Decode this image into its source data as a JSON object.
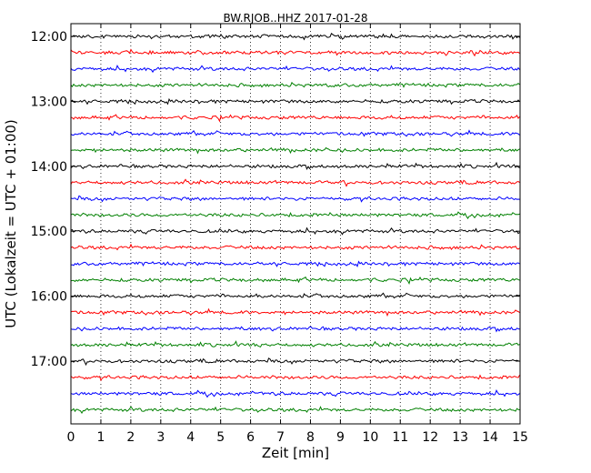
{
  "chart_data": {
    "type": "line",
    "title": "BW.RJOB..HHZ 2017-01-28",
    "xlabel": "Zeit  [min]",
    "ylabel": "UTC (Lokalzeit = UTC + 01:00)",
    "xlim": [
      0,
      15
    ],
    "x_ticks": [
      "0",
      "1",
      "2",
      "3",
      "4",
      "5",
      "6",
      "7",
      "8",
      "9",
      "10",
      "11",
      "12",
      "13",
      "14",
      "15"
    ],
    "y_ticks": [
      "12:00",
      "13:00",
      "14:00",
      "15:00",
      "16:00",
      "17:00"
    ],
    "grid": "vertical-dotted",
    "trace_interval_min": 15,
    "first_trace": "12:00",
    "last_trace": "17:45",
    "trace_count": 24,
    "trace_colors": [
      "#000000",
      "#ff0000",
      "#0000ff",
      "#008000"
    ]
  }
}
